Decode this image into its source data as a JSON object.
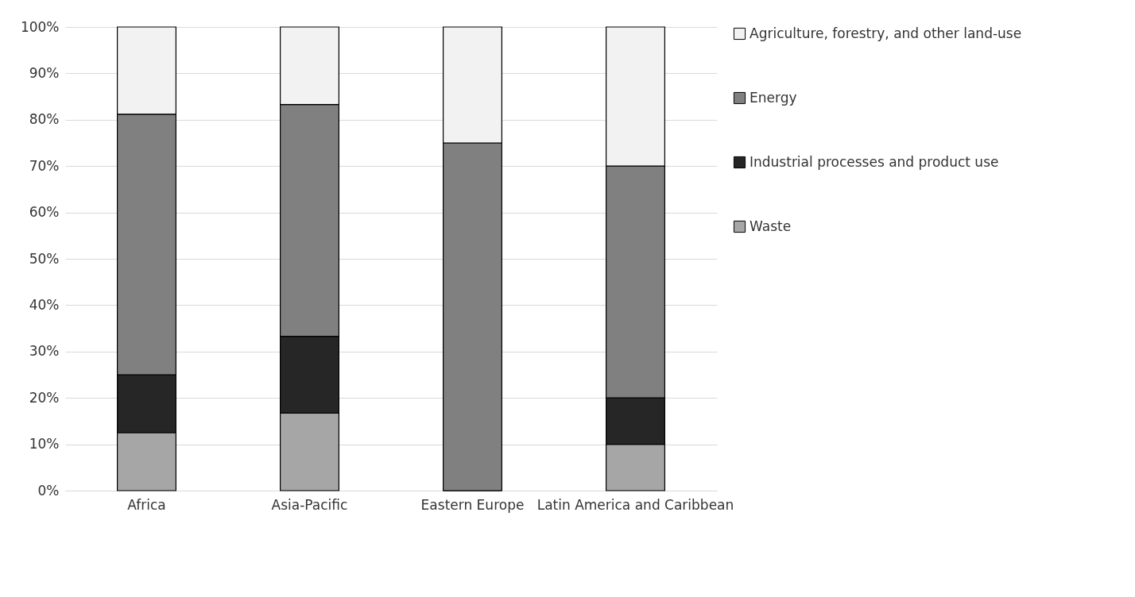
{
  "chart_data": {
    "type": "bar",
    "stacked": true,
    "categories": [
      "Africa",
      "Asia-Pacific",
      "Eastern Europe",
      "Latin America and Caribbean"
    ],
    "series": [
      {
        "name": "Waste",
        "color": "#a6a6a6",
        "values": [
          12.5,
          16.7,
          0,
          10
        ]
      },
      {
        "name": "Industrial processes and product use",
        "color": "#262626",
        "values": [
          12.5,
          16.6,
          0,
          10
        ]
      },
      {
        "name": "Energy",
        "color": "#808080",
        "values": [
          56.2,
          50,
          75,
          50
        ]
      },
      {
        "name": "Agriculture, forestry, and other land-use",
        "color": "#f2f2f2",
        "values": [
          18.8,
          16.7,
          25,
          30
        ]
      }
    ],
    "ylim": [
      0,
      100
    ],
    "yticks": [
      {
        "value": 0,
        "label": "0%"
      },
      {
        "value": 10,
        "label": "10%"
      },
      {
        "value": 20,
        "label": "20%"
      },
      {
        "value": 30,
        "label": "30%"
      },
      {
        "value": 40,
        "label": "40%"
      },
      {
        "value": 50,
        "label": "50%"
      },
      {
        "value": 60,
        "label": "60%"
      },
      {
        "value": 70,
        "label": "70%"
      },
      {
        "value": 80,
        "label": "80%"
      },
      {
        "value": 90,
        "label": "90%"
      },
      {
        "value": 100,
        "label": "100%"
      }
    ],
    "grid": "y",
    "legend": "right"
  }
}
